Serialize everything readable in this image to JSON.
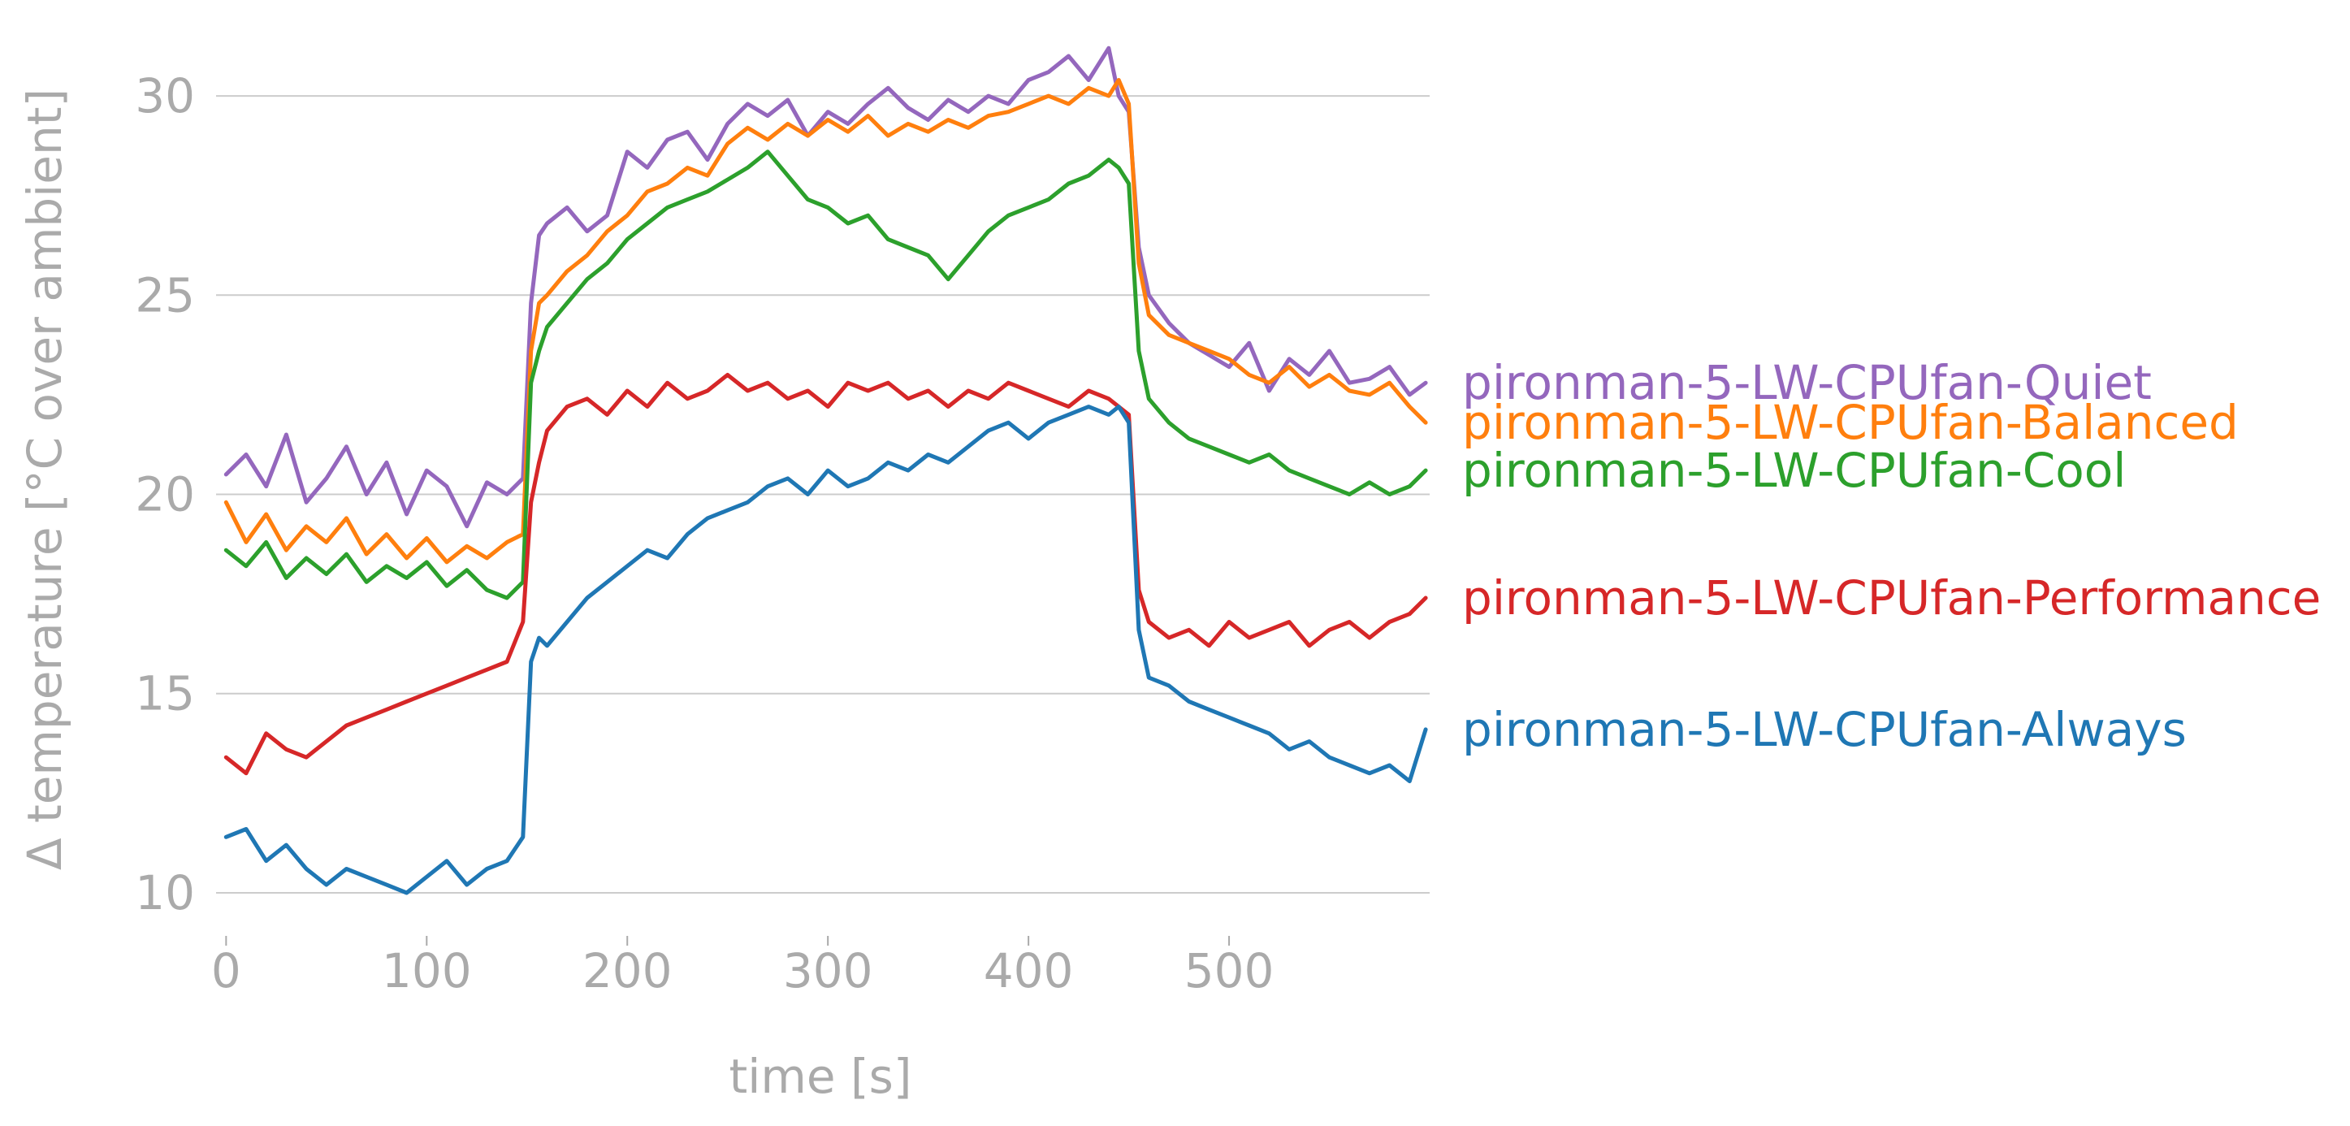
{
  "chart_data": {
    "type": "line",
    "title": "",
    "xlabel": "time [s]",
    "ylabel": "Δ temperature [°C over ambient]",
    "xlim": [
      -5,
      600
    ],
    "ylim": [
      9,
      32
    ],
    "xticks": [
      0,
      100,
      200,
      300,
      400,
      500
    ],
    "yticks": [
      10,
      15,
      20,
      25,
      30
    ],
    "grid": "horizontal",
    "legend": "direct labels at right end of each line",
    "series": [
      {
        "name": "pironman-5-LW-CPUfan-Quiet",
        "color": "#9467bd",
        "label_value": 22.8,
        "x": [
          0,
          10,
          20,
          30,
          40,
          50,
          60,
          70,
          80,
          90,
          100,
          110,
          120,
          130,
          140,
          148,
          152,
          156,
          160,
          170,
          180,
          190,
          200,
          210,
          220,
          230,
          240,
          250,
          260,
          270,
          280,
          290,
          300,
          310,
          320,
          330,
          340,
          350,
          360,
          370,
          380,
          390,
          400,
          410,
          420,
          430,
          440,
          445,
          450,
          455,
          460,
          470,
          480,
          490,
          500,
          510,
          520,
          530,
          540,
          550,
          560,
          570,
          580,
          590,
          598
        ],
        "y": [
          20.5,
          21.0,
          20.2,
          21.5,
          19.8,
          20.4,
          21.2,
          20.0,
          20.8,
          19.5,
          20.6,
          20.2,
          19.2,
          20.3,
          20.0,
          20.4,
          24.8,
          26.5,
          26.8,
          27.2,
          26.6,
          27.0,
          28.6,
          28.2,
          28.9,
          29.1,
          28.4,
          29.3,
          29.8,
          29.5,
          29.9,
          29.0,
          29.6,
          29.3,
          29.8,
          30.2,
          29.7,
          29.4,
          29.9,
          29.6,
          30.0,
          29.8,
          30.4,
          30.6,
          31.0,
          30.4,
          31.2,
          30.0,
          29.6,
          26.2,
          25.0,
          24.3,
          23.8,
          23.5,
          23.2,
          23.8,
          22.6,
          23.4,
          23.0,
          23.6,
          22.8,
          22.9,
          23.2,
          22.5,
          22.8
        ]
      },
      {
        "name": "pironman-5-LW-CPUfan-Balanced",
        "color": "#ff7f0e",
        "label_value": 21.8,
        "x": [
          0,
          10,
          20,
          30,
          40,
          50,
          60,
          70,
          80,
          90,
          100,
          110,
          120,
          130,
          140,
          148,
          152,
          156,
          160,
          170,
          180,
          190,
          200,
          210,
          220,
          230,
          240,
          250,
          260,
          270,
          280,
          290,
          300,
          310,
          320,
          330,
          340,
          350,
          360,
          370,
          380,
          390,
          400,
          410,
          420,
          430,
          440,
          445,
          450,
          455,
          460,
          470,
          480,
          490,
          500,
          510,
          520,
          530,
          540,
          550,
          560,
          570,
          580,
          590,
          598
        ],
        "y": [
          19.8,
          18.8,
          19.5,
          18.6,
          19.2,
          18.8,
          19.4,
          18.5,
          19.0,
          18.4,
          18.9,
          18.3,
          18.7,
          18.4,
          18.8,
          19.0,
          23.6,
          24.8,
          25.0,
          25.6,
          26.0,
          26.6,
          27.0,
          27.6,
          27.8,
          28.2,
          28.0,
          28.8,
          29.2,
          28.9,
          29.3,
          29.0,
          29.4,
          29.1,
          29.5,
          29.0,
          29.3,
          29.1,
          29.4,
          29.2,
          29.5,
          29.6,
          29.8,
          30.0,
          29.8,
          30.2,
          30.0,
          30.4,
          29.8,
          25.8,
          24.5,
          24.0,
          23.8,
          23.6,
          23.4,
          23.0,
          22.8,
          23.2,
          22.7,
          23.0,
          22.6,
          22.5,
          22.8,
          22.2,
          21.8
        ]
      },
      {
        "name": "pironman-5-LW-CPUfan-Cool",
        "color": "#2ca02c",
        "label_value": 20.6,
        "x": [
          0,
          10,
          20,
          30,
          40,
          50,
          60,
          70,
          80,
          90,
          100,
          110,
          120,
          130,
          140,
          148,
          152,
          156,
          160,
          170,
          180,
          190,
          200,
          210,
          220,
          230,
          240,
          250,
          260,
          270,
          280,
          290,
          300,
          310,
          320,
          330,
          340,
          350,
          360,
          370,
          380,
          390,
          400,
          410,
          420,
          430,
          440,
          445,
          450,
          455,
          460,
          470,
          480,
          490,
          500,
          510,
          520,
          530,
          540,
          550,
          560,
          570,
          580,
          590,
          598
        ],
        "y": [
          18.6,
          18.2,
          18.8,
          17.9,
          18.4,
          18.0,
          18.5,
          17.8,
          18.2,
          17.9,
          18.3,
          17.7,
          18.1,
          17.6,
          17.4,
          17.8,
          22.8,
          23.6,
          24.2,
          24.8,
          25.4,
          25.8,
          26.4,
          26.8,
          27.2,
          27.4,
          27.6,
          27.9,
          28.2,
          28.6,
          28.0,
          27.4,
          27.2,
          26.8,
          27.0,
          26.4,
          26.2,
          26.0,
          25.4,
          26.0,
          26.6,
          27.0,
          27.2,
          27.4,
          27.8,
          28.0,
          28.4,
          28.2,
          27.8,
          23.6,
          22.4,
          21.8,
          21.4,
          21.2,
          21.0,
          20.8,
          21.0,
          20.6,
          20.4,
          20.2,
          20.0,
          20.3,
          20.0,
          20.2,
          20.6
        ]
      },
      {
        "name": "pironman-5-LW-CPUfan-Performance",
        "color": "#d62728",
        "label_value": 17.4,
        "x": [
          0,
          10,
          20,
          30,
          40,
          50,
          60,
          70,
          80,
          90,
          100,
          110,
          120,
          130,
          140,
          148,
          152,
          156,
          160,
          170,
          180,
          190,
          200,
          210,
          220,
          230,
          240,
          250,
          260,
          270,
          280,
          290,
          300,
          310,
          320,
          330,
          340,
          350,
          360,
          370,
          380,
          390,
          400,
          410,
          420,
          430,
          440,
          445,
          450,
          455,
          460,
          470,
          480,
          490,
          500,
          510,
          520,
          530,
          540,
          550,
          560,
          570,
          580,
          590,
          598
        ],
        "y": [
          13.4,
          13.0,
          14.0,
          13.6,
          13.4,
          13.8,
          14.2,
          14.4,
          14.6,
          14.8,
          15.0,
          15.2,
          15.4,
          15.6,
          15.8,
          16.8,
          19.8,
          20.8,
          21.6,
          22.2,
          22.4,
          22.0,
          22.6,
          22.2,
          22.8,
          22.4,
          22.6,
          23.0,
          22.6,
          22.8,
          22.4,
          22.6,
          22.2,
          22.8,
          22.6,
          22.8,
          22.4,
          22.6,
          22.2,
          22.6,
          22.4,
          22.8,
          22.6,
          22.4,
          22.2,
          22.6,
          22.4,
          22.2,
          22.0,
          17.6,
          16.8,
          16.4,
          16.6,
          16.2,
          16.8,
          16.4,
          16.6,
          16.8,
          16.2,
          16.6,
          16.8,
          16.4,
          16.8,
          17.0,
          17.4
        ]
      },
      {
        "name": "pironman-5-LW-CPUfan-Always",
        "color": "#1f77b4",
        "label_value": 14.1,
        "x": [
          0,
          10,
          20,
          30,
          40,
          50,
          60,
          70,
          80,
          90,
          100,
          110,
          120,
          130,
          140,
          148,
          152,
          156,
          160,
          170,
          180,
          190,
          200,
          210,
          220,
          230,
          240,
          250,
          260,
          270,
          280,
          290,
          300,
          310,
          320,
          330,
          340,
          350,
          360,
          370,
          380,
          390,
          400,
          410,
          420,
          430,
          440,
          445,
          450,
          455,
          460,
          470,
          480,
          490,
          500,
          510,
          520,
          530,
          540,
          550,
          560,
          570,
          580,
          590,
          598
        ],
        "y": [
          11.4,
          11.6,
          10.8,
          11.2,
          10.6,
          10.2,
          10.6,
          10.4,
          10.2,
          10.0,
          10.4,
          10.8,
          10.2,
          10.6,
          10.8,
          11.4,
          15.8,
          16.4,
          16.2,
          16.8,
          17.4,
          17.8,
          18.2,
          18.6,
          18.4,
          19.0,
          19.4,
          19.6,
          19.8,
          20.2,
          20.4,
          20.0,
          20.6,
          20.2,
          20.4,
          20.8,
          20.6,
          21.0,
          20.8,
          21.2,
          21.6,
          21.8,
          21.4,
          21.8,
          22.0,
          22.2,
          22.0,
          22.2,
          21.8,
          16.6,
          15.4,
          15.2,
          14.8,
          14.6,
          14.4,
          14.2,
          14.0,
          13.6,
          13.8,
          13.4,
          13.2,
          13.0,
          13.2,
          12.8,
          14.1
        ]
      }
    ]
  }
}
